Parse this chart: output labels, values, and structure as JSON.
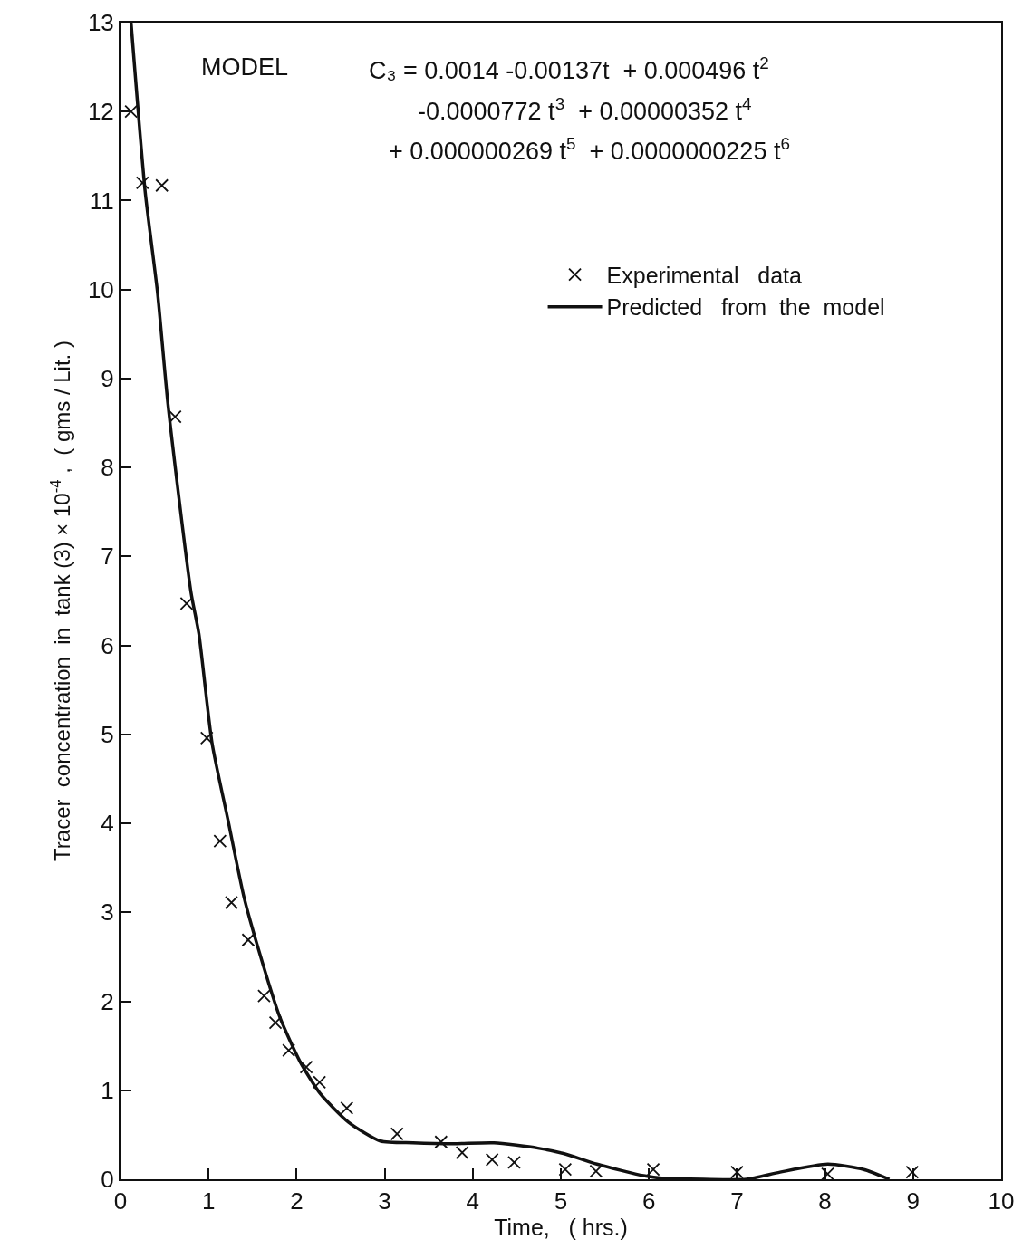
{
  "chart_data": {
    "type": "scatter",
    "xlabel": "Time,   ( hrs.)",
    "ylabel": "Tracer  concentration  in  tank (3) × 10$^{-4}$ ,  ( gms / Lit. )",
    "annotations": [
      "MODEL",
      "C₃ = 0.0014 -0.00137t  + 0.000496 t$^{2}$",
      "-0.0000772 t$^{3}$  + 0.00000352 t$^{4}$",
      "+ 0.000000269 t$^{5}$  + 0.0000000225 t$^{6}$"
    ],
    "series": [
      {
        "name": "Experimental   data",
        "type": "scatter",
        "color": "#111111",
        "marker": "cross",
        "x": [
          0.12,
          0.25,
          0.47,
          0.62,
          0.75,
          0.98,
          1.13,
          1.26,
          1.45,
          1.63,
          1.76,
          1.91,
          2.11,
          2.26,
          2.57,
          3.14,
          3.64,
          3.88,
          4.22,
          4.47,
          5.05,
          5.4,
          6.05,
          7.0,
          8.03,
          8.99
        ],
        "values": [
          12.0,
          11.2,
          11.17,
          8.57,
          6.47,
          4.96,
          3.8,
          3.11,
          2.69,
          2.06,
          1.76,
          1.45,
          1.26,
          1.09,
          0.8,
          0.51,
          0.42,
          0.3,
          0.22,
          0.19,
          0.11,
          0.09,
          0.11,
          0.08,
          0.06,
          0.08
        ]
      },
      {
        "name": "Predicted   from  the  model",
        "type": "line",
        "color": "#111111",
        "marker": "none",
        "line_style": "solid",
        "x": [
          0.12,
          0.28,
          0.42,
          0.54,
          0.8,
          0.89,
          1.04,
          1.22,
          1.4,
          1.58,
          1.81,
          2.04,
          2.27,
          2.59,
          2.95,
          3.32,
          3.78,
          4.24,
          4.74,
          5.03,
          5.41,
          5.94,
          6.17,
          6.62,
          7.11,
          7.49,
          8.03,
          8.44,
          8.73
        ],
        "values": [
          13.0,
          11.1,
          9.97,
          8.7,
          6.6,
          6.13,
          4.9,
          4.04,
          3.18,
          2.54,
          1.82,
          1.32,
          0.96,
          0.64,
          0.43,
          0.41,
          0.4,
          0.41,
          0.35,
          0.29,
          0.17,
          0.04,
          0.01,
          0.0,
          0.0,
          0.08,
          0.17,
          0.11,
          0.0
        ]
      }
    ],
    "xlim": [
      0,
      10
    ],
    "xticks": [
      0,
      1,
      2,
      3,
      4,
      5,
      6,
      7,
      8,
      9,
      10
    ],
    "ylim": [
      0,
      13
    ],
    "yticks": [
      0,
      1,
      2,
      3,
      4,
      5,
      6,
      7,
      8,
      9,
      10,
      11,
      12,
      13
    ],
    "grid": false,
    "legend": "top right"
  }
}
